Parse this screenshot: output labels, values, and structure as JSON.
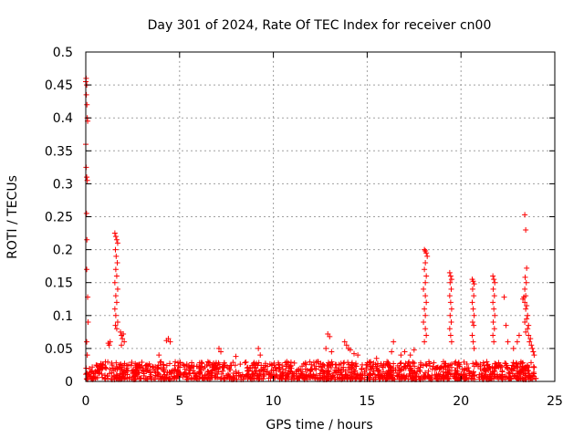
{
  "chart_data": {
    "type": "scatter",
    "title": "Day 301 of 2024, Rate Of TEC Index for receiver cn00",
    "xlabel": "GPS time / hours",
    "ylabel": "ROTI / TECUs",
    "xlim": [
      0,
      25
    ],
    "ylim": [
      0,
      0.5
    ],
    "x_ticks": [
      "0",
      "5",
      "10",
      "15",
      "20",
      "25"
    ],
    "y_ticks": [
      "0",
      "0.05",
      "0.1",
      "0.15",
      "0.2",
      "0.25",
      "0.3",
      "0.35",
      "0.4",
      "0.45",
      "0.5"
    ],
    "x_tick_values": [
      0,
      5,
      10,
      15,
      20,
      25
    ],
    "y_tick_values": [
      0,
      0.05,
      0.1,
      0.15,
      0.2,
      0.25,
      0.3,
      0.35,
      0.4,
      0.45,
      0.5
    ],
    "grid": true,
    "marker": "+",
    "color": "#ff0000",
    "series": [
      {
        "name": "ROTI",
        "points": [
          [
            0.0,
            0.455
          ],
          [
            0.02,
            0.46
          ],
          [
            0.05,
            0.45
          ],
          [
            0.03,
            0.435
          ],
          [
            0.06,
            0.42
          ],
          [
            0.08,
            0.4
          ],
          [
            0.1,
            0.395
          ],
          [
            0.0,
            0.36
          ],
          [
            0.02,
            0.325
          ],
          [
            0.05,
            0.31
          ],
          [
            0.08,
            0.305
          ],
          [
            0.04,
            0.255
          ],
          [
            0.06,
            0.215
          ],
          [
            0.05,
            0.17
          ],
          [
            0.1,
            0.128
          ],
          [
            0.12,
            0.09
          ],
          [
            0.05,
            0.06
          ],
          [
            0.08,
            0.04
          ],
          [
            0.02,
            0.02
          ],
          [
            1.2,
            0.058
          ],
          [
            1.3,
            0.06
          ],
          [
            1.25,
            0.055
          ],
          [
            1.55,
            0.225
          ],
          [
            1.6,
            0.22
          ],
          [
            1.65,
            0.215
          ],
          [
            1.7,
            0.21
          ],
          [
            1.58,
            0.2
          ],
          [
            1.62,
            0.19
          ],
          [
            1.68,
            0.18
          ],
          [
            1.6,
            0.17
          ],
          [
            1.65,
            0.16
          ],
          [
            1.55,
            0.15
          ],
          [
            1.7,
            0.14
          ],
          [
            1.6,
            0.13
          ],
          [
            1.65,
            0.12
          ],
          [
            1.55,
            0.11
          ],
          [
            1.6,
            0.1
          ],
          [
            1.7,
            0.09
          ],
          [
            1.58,
            0.085
          ],
          [
            1.65,
            0.08
          ],
          [
            1.85,
            0.075
          ],
          [
            1.9,
            0.07
          ],
          [
            1.95,
            0.065
          ],
          [
            2.0,
            0.072
          ],
          [
            2.05,
            0.06
          ],
          [
            1.9,
            0.055
          ],
          [
            3.9,
            0.04
          ],
          [
            4.3,
            0.062
          ],
          [
            4.4,
            0.065
          ],
          [
            4.5,
            0.06
          ],
          [
            7.1,
            0.05
          ],
          [
            7.2,
            0.045
          ],
          [
            8.0,
            0.038
          ],
          [
            9.2,
            0.05
          ],
          [
            9.3,
            0.04
          ],
          [
            12.9,
            0.072
          ],
          [
            13.0,
            0.068
          ],
          [
            12.8,
            0.05
          ],
          [
            13.1,
            0.045
          ],
          [
            13.8,
            0.06
          ],
          [
            13.9,
            0.055
          ],
          [
            14.0,
            0.05
          ],
          [
            14.1,
            0.048
          ],
          [
            14.3,
            0.042
          ],
          [
            14.5,
            0.04
          ],
          [
            15.5,
            0.035
          ],
          [
            16.3,
            0.045
          ],
          [
            16.4,
            0.06
          ],
          [
            16.8,
            0.04
          ],
          [
            17.0,
            0.045
          ],
          [
            17.3,
            0.04
          ],
          [
            17.5,
            0.048
          ],
          [
            18.05,
            0.2
          ],
          [
            18.1,
            0.198
          ],
          [
            18.15,
            0.195
          ],
          [
            18.2,
            0.19
          ],
          [
            18.1,
            0.18
          ],
          [
            18.05,
            0.17
          ],
          [
            18.15,
            0.16
          ],
          [
            18.1,
            0.15
          ],
          [
            18.0,
            0.14
          ],
          [
            18.1,
            0.13
          ],
          [
            18.15,
            0.12
          ],
          [
            18.05,
            0.11
          ],
          [
            18.1,
            0.1
          ],
          [
            18.0,
            0.09
          ],
          [
            18.1,
            0.08
          ],
          [
            18.15,
            0.07
          ],
          [
            18.05,
            0.06
          ],
          [
            19.4,
            0.165
          ],
          [
            19.45,
            0.16
          ],
          [
            19.5,
            0.155
          ],
          [
            19.42,
            0.15
          ],
          [
            19.48,
            0.14
          ],
          [
            19.4,
            0.13
          ],
          [
            19.45,
            0.12
          ],
          [
            19.5,
            0.11
          ],
          [
            19.42,
            0.1
          ],
          [
            19.48,
            0.09
          ],
          [
            19.4,
            0.08
          ],
          [
            19.45,
            0.07
          ],
          [
            19.5,
            0.06
          ],
          [
            20.6,
            0.155
          ],
          [
            20.65,
            0.152
          ],
          [
            20.7,
            0.148
          ],
          [
            20.62,
            0.14
          ],
          [
            20.68,
            0.13
          ],
          [
            20.6,
            0.12
          ],
          [
            20.65,
            0.11
          ],
          [
            20.7,
            0.1
          ],
          [
            20.62,
            0.09
          ],
          [
            20.68,
            0.085
          ],
          [
            20.6,
            0.07
          ],
          [
            20.65,
            0.06
          ],
          [
            20.7,
            0.05
          ],
          [
            21.7,
            0.16
          ],
          [
            21.75,
            0.155
          ],
          [
            21.8,
            0.15
          ],
          [
            21.72,
            0.14
          ],
          [
            21.78,
            0.13
          ],
          [
            21.7,
            0.12
          ],
          [
            21.75,
            0.11
          ],
          [
            21.8,
            0.1
          ],
          [
            21.72,
            0.09
          ],
          [
            21.78,
            0.08
          ],
          [
            21.7,
            0.07
          ],
          [
            21.75,
            0.06
          ],
          [
            22.3,
            0.128
          ],
          [
            22.4,
            0.085
          ],
          [
            22.5,
            0.06
          ],
          [
            22.8,
            0.05
          ],
          [
            23.0,
            0.06
          ],
          [
            23.1,
            0.07
          ],
          [
            23.4,
            0.253
          ],
          [
            23.45,
            0.23
          ],
          [
            23.5,
            0.172
          ],
          [
            23.42,
            0.158
          ],
          [
            23.48,
            0.15
          ],
          [
            23.4,
            0.14
          ],
          [
            23.45,
            0.13
          ],
          [
            23.35,
            0.128
          ],
          [
            23.3,
            0.125
          ],
          [
            23.4,
            0.12
          ],
          [
            23.5,
            0.115
          ],
          [
            23.45,
            0.11
          ],
          [
            23.55,
            0.1
          ],
          [
            23.5,
            0.095
          ],
          [
            23.4,
            0.09
          ],
          [
            23.6,
            0.085
          ],
          [
            23.55,
            0.08
          ],
          [
            23.45,
            0.075
          ],
          [
            23.6,
            0.07
          ],
          [
            23.7,
            0.065
          ],
          [
            23.65,
            0.06
          ],
          [
            23.75,
            0.055
          ],
          [
            23.8,
            0.05
          ],
          [
            23.85,
            0.045
          ],
          [
            23.9,
            0.04
          ]
        ],
        "baseline": {
          "description": "dense band of points across the full day",
          "x_range": [
            0,
            24
          ],
          "y_range": [
            0.0,
            0.035
          ],
          "typical_max": 0.03
        }
      }
    ]
  }
}
